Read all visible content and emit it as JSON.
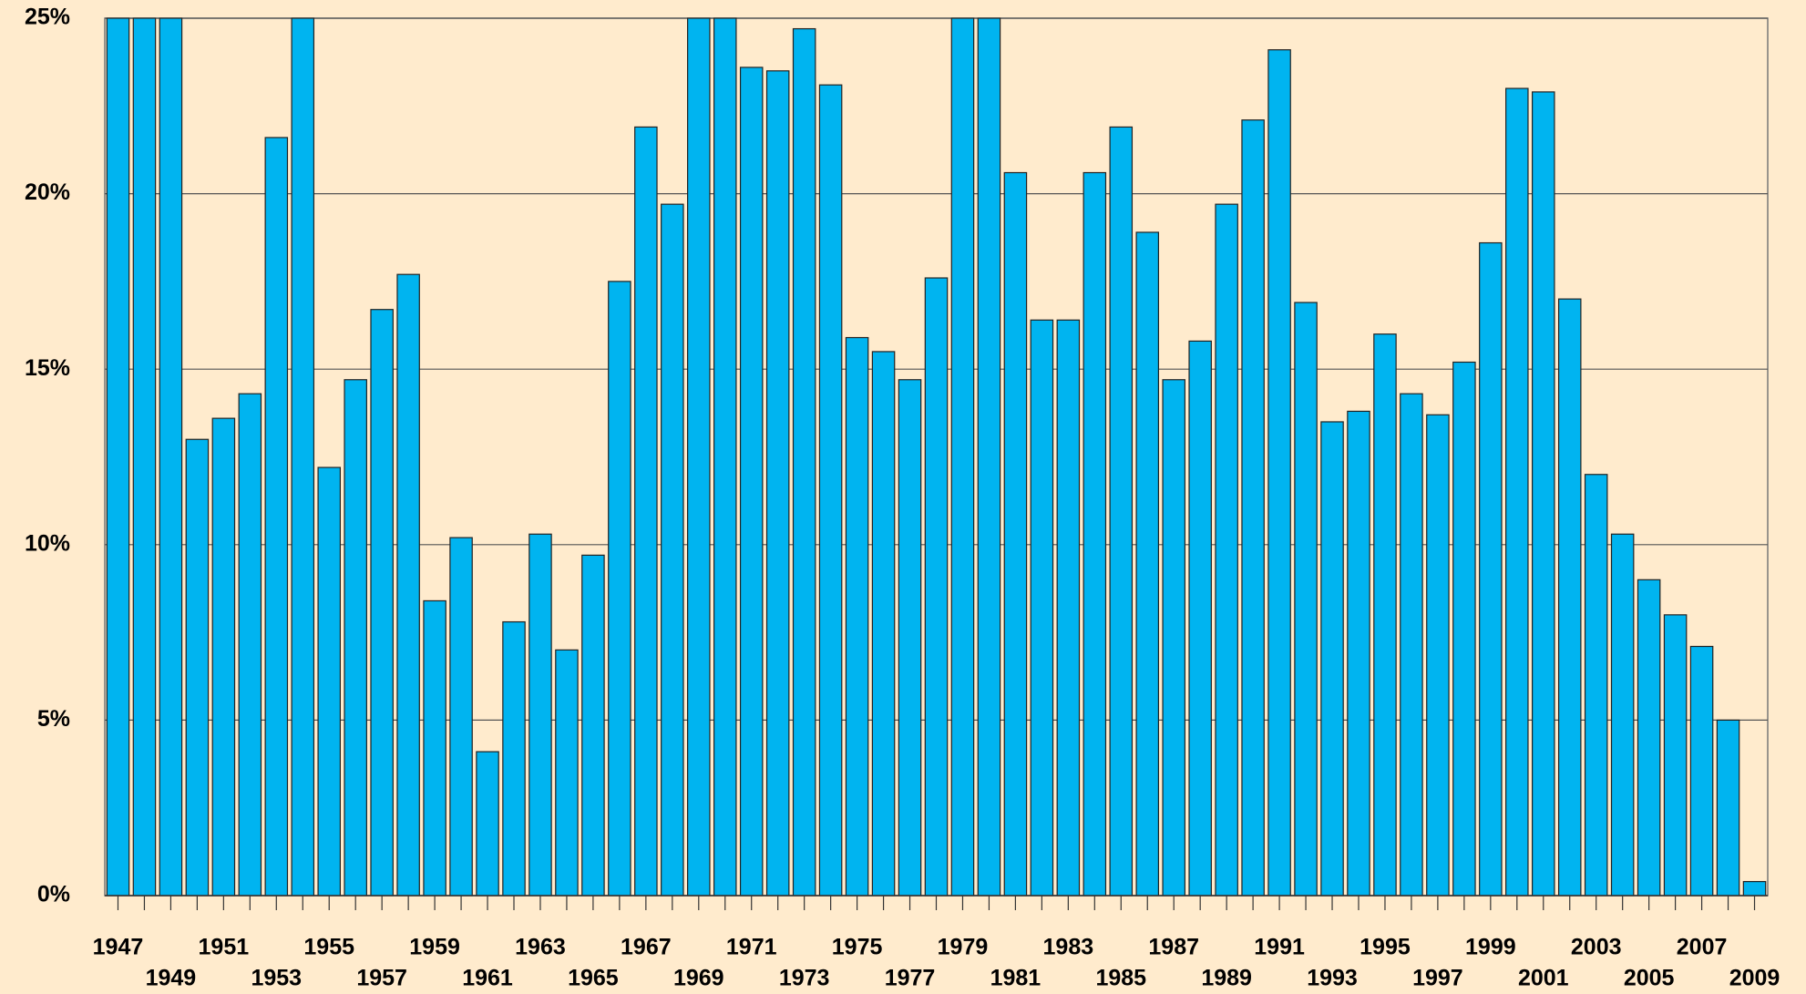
{
  "chart_data": {
    "type": "bar",
    "categories": [
      "1947",
      null,
      "1949",
      null,
      "1951",
      null,
      "1953",
      null,
      "1955",
      null,
      "1957",
      null,
      "1959",
      null,
      "1961",
      null,
      "1963",
      null,
      "1965",
      null,
      "1967",
      null,
      "1969",
      null,
      "1971",
      null,
      "1973",
      null,
      "1975",
      null,
      "1977",
      null,
      "1979",
      null,
      "1981",
      null,
      "1983",
      null,
      "1985",
      null,
      "1987",
      null,
      "1989",
      null,
      "1991",
      null,
      "1993",
      null,
      "1995",
      null,
      "1997",
      null,
      "1999",
      null,
      "2001",
      null,
      "2003",
      null,
      "2005",
      null,
      "2007",
      null,
      "2009"
    ],
    "values": [
      25,
      25,
      25,
      13.0,
      13.6,
      14.3,
      21.6,
      25,
      12.2,
      14.7,
      16.7,
      17.7,
      8.4,
      10.2,
      4.1,
      7.8,
      10.3,
      7.0,
      9.7,
      17.5,
      21.9,
      19.7,
      25,
      25,
      23.6,
      23.5,
      24.7,
      23.1,
      15.9,
      15.5,
      14.7,
      17.6,
      25,
      25,
      20.6,
      16.4,
      16.4,
      20.6,
      21.9,
      18.9,
      14.7,
      15.8,
      19.7,
      22.1,
      24.1,
      16.9,
      13.5,
      13.8,
      16.0,
      14.3,
      13.7,
      15.2,
      18.6,
      23.0,
      22.9,
      17.0,
      12.0,
      10.3,
      9.0,
      8.0,
      7.1,
      5.0,
      0.4
    ],
    "color": "#00b4f0",
    "ylim": [
      0,
      25
    ],
    "yticks": [
      {
        "value": 0,
        "label": "0%"
      },
      {
        "value": 5,
        "label": "5%"
      },
      {
        "value": 10,
        "label": "10%"
      },
      {
        "value": 15,
        "label": "15%"
      },
      {
        "value": 20,
        "label": "20%"
      },
      {
        "value": 25,
        "label": "25%"
      }
    ],
    "grid": true
  }
}
